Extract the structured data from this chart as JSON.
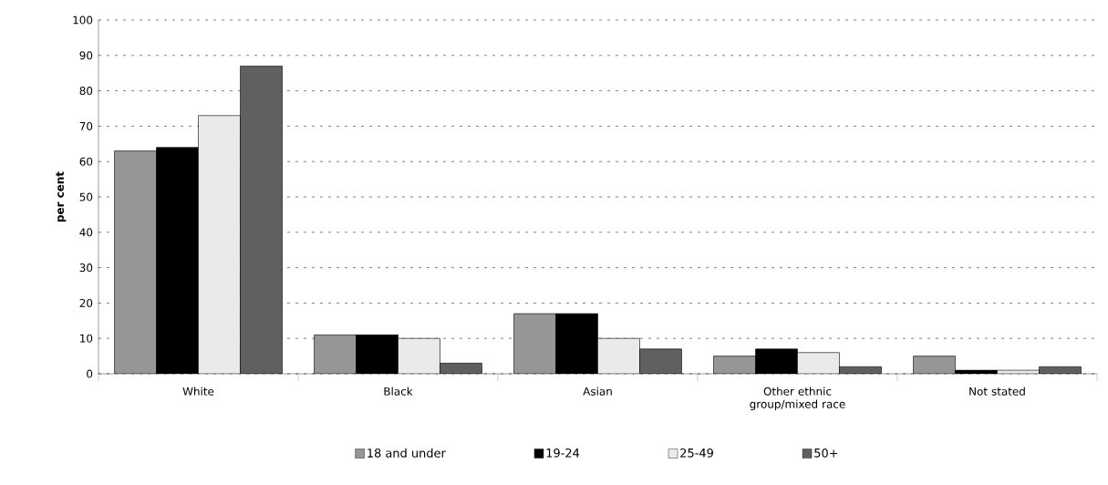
{
  "chart_data": {
    "type": "bar",
    "ylabel": "per cent",
    "categories": [
      "White",
      "Black",
      "Asian",
      "Other ethnic group/mixed race",
      "Not stated"
    ],
    "series": [
      {
        "name": "18 and under",
        "color": "#969696",
        "values": [
          63,
          11,
          17,
          5,
          5
        ]
      },
      {
        "name": "19-24",
        "color": "#000000",
        "values": [
          64,
          11,
          17,
          7,
          1
        ]
      },
      {
        "name": "25-49",
        "color": "#eaeaea",
        "values": [
          73,
          10,
          10,
          6,
          1
        ]
      },
      {
        "name": "50+",
        "color": "#606060",
        "values": [
          87,
          3,
          7,
          2,
          2
        ]
      }
    ],
    "ylim": [
      0,
      100
    ],
    "yticks": [
      0,
      10,
      20,
      30,
      40,
      50,
      60,
      70,
      80,
      90,
      100
    ],
    "grid": "y",
    "legend": "bottom"
  }
}
